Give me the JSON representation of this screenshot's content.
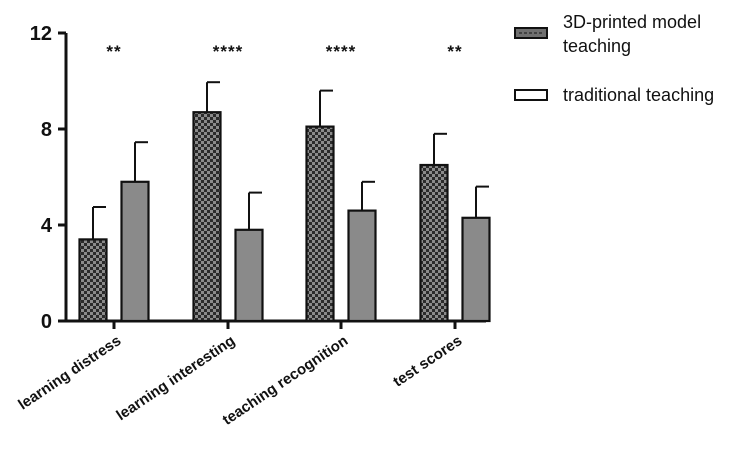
{
  "chart_data": {
    "type": "bar",
    "categories": [
      "learning distress",
      "learning interesting",
      "teaching recognition",
      "test scores"
    ],
    "series": [
      {
        "name": "3D-printed model teaching",
        "values": [
          3.4,
          8.7,
          8.1,
          6.5
        ],
        "errors": [
          1.35,
          1.25,
          1.5,
          1.3
        ],
        "pattern": "checkered",
        "color": "#6f6f6f"
      },
      {
        "name": "traditional teaching",
        "values": [
          5.8,
          3.8,
          4.6,
          4.3
        ],
        "errors": [
          1.65,
          1.55,
          1.2,
          1.3
        ],
        "pattern": "solid",
        "color": "#8a8a8a"
      }
    ],
    "significance": [
      "**",
      "****",
      "****",
      "**"
    ],
    "ylim": [
      0,
      12
    ],
    "yticks": [
      0,
      4,
      8,
      12
    ],
    "grid": false,
    "legend_position": "top-right"
  },
  "legend": {
    "series_1_line_1": "3D-printed model",
    "series_1_line_2": "teaching",
    "series_2": "traditional teaching"
  }
}
